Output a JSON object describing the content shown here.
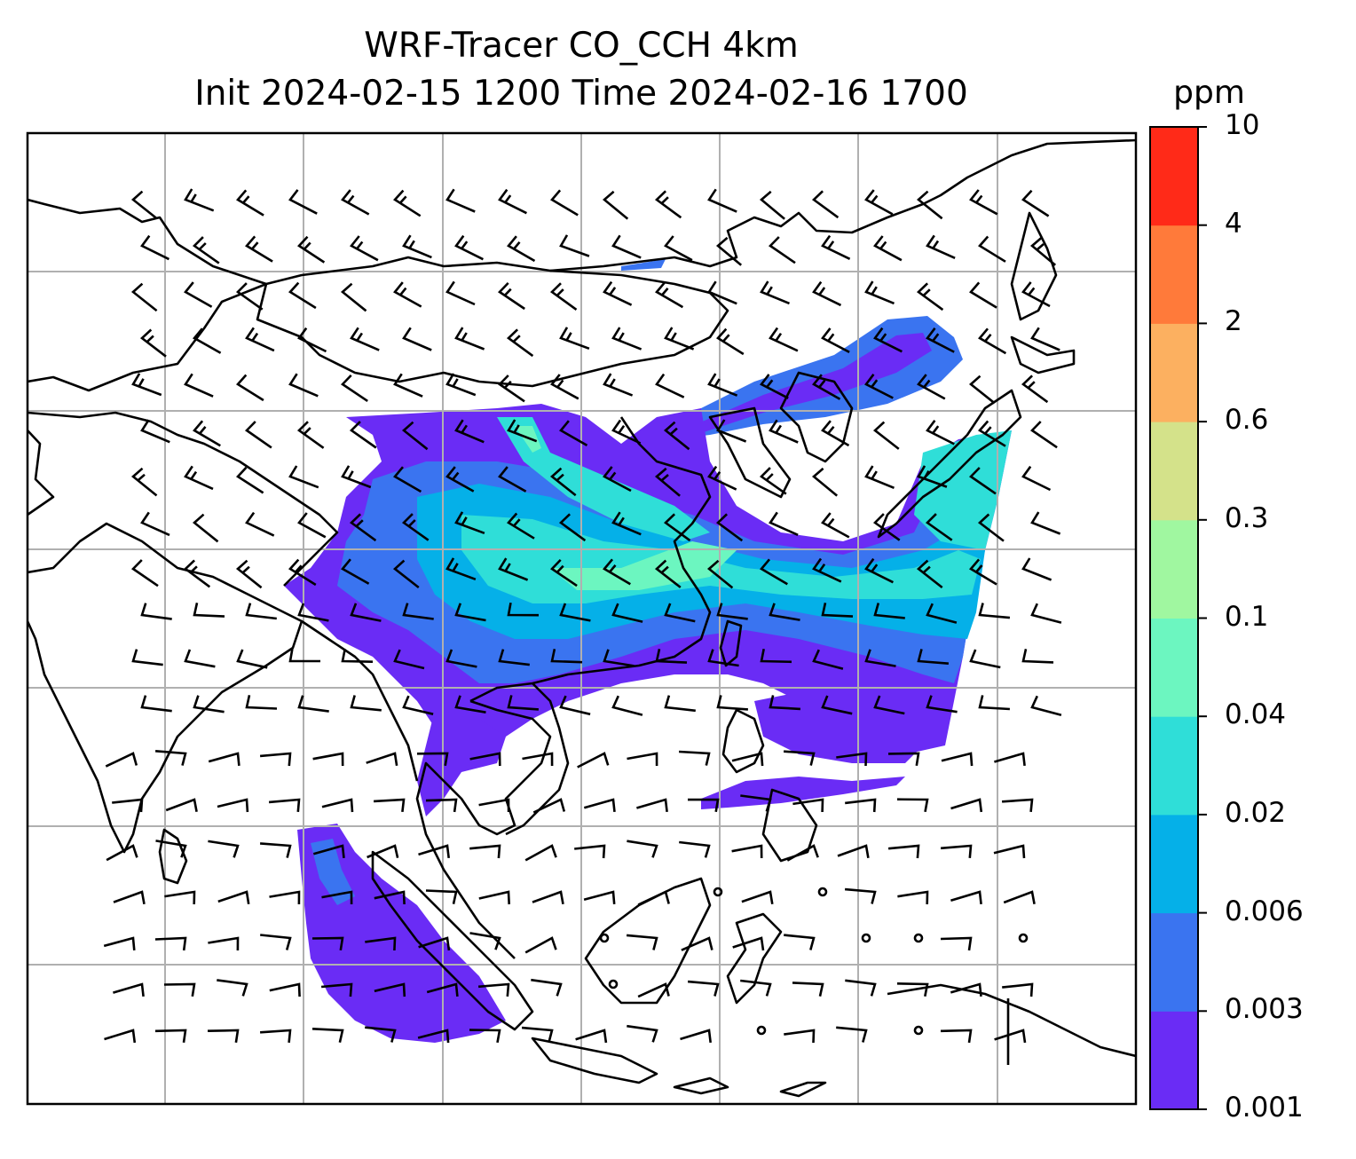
{
  "title": {
    "line1": "WRF-Tracer CO_CCH 4km",
    "line2": "Init 2024-02-15 1200 Time 2024-02-16 1700"
  },
  "colorbar": {
    "unit": "ppm",
    "ticks": [
      "0.001",
      "0.003",
      "0.006",
      "0.02",
      "0.04",
      "0.1",
      "0.3",
      "0.6",
      "2",
      "4",
      "10"
    ],
    "colors": [
      "#6a2cf5",
      "#3a74f0",
      "#05b0e8",
      "#2fded8",
      "#6cf6c0",
      "#a0f7a0",
      "#d4e28a",
      "#fcb060",
      "#ff7a3a",
      "#ff2a18"
    ]
  },
  "map": {
    "style": {
      "coast_color": "#000000",
      "grid_color": "#b0b0b0",
      "barb_color": "#000000"
    }
  }
}
